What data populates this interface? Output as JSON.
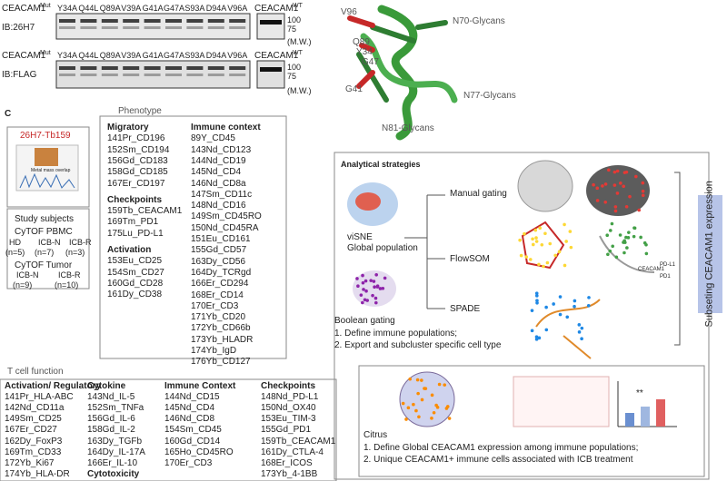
{
  "blots": [
    {
      "construct": "CEACAM1",
      "construct_sup": "Mut",
      "lanes": [
        "Y34A",
        "Q44L",
        "Q89A",
        "V39A",
        "G41A",
        "G47A",
        "S93A",
        "D94A",
        "V96A"
      ],
      "wt": "CEACAM1",
      "wt_sup": "WT",
      "antibody": "IB:26H7",
      "markers": [
        100,
        75
      ],
      "mw": "(M.W.)"
    },
    {
      "construct": "CEACAM1",
      "construct_sup": "Mut",
      "lanes": [
        "Y34A",
        "Q44L",
        "Q89A",
        "V39A",
        "G41A",
        "G47A",
        "S93A",
        "D94A",
        "V96A"
      ],
      "wt": "CEACAM1",
      "wt_sup": "WT",
      "antibody": "IB:FLAG",
      "markers": [
        100,
        75
      ],
      "mw": "(M.W.)"
    }
  ],
  "structure": {
    "residues": [
      "V96",
      "Q89",
      "Y34",
      "G47",
      "G41"
    ],
    "glycans": [
      "N70-Glycans",
      "N77-Glycans",
      "N81-Glycans"
    ]
  },
  "panel_c": {
    "label": "C",
    "probe": "26H7-Tb159",
    "overlap": "Metal mass overlap",
    "subjects": {
      "title": "Study subjects",
      "pbmc": "CyTOF PBMC",
      "pbmc_groups": [
        [
          "HD",
          "(n=5)"
        ],
        [
          "ICB-N",
          "(n=7)"
        ],
        [
          "ICB-R",
          "(n=3)"
        ]
      ],
      "tumor": "CyTOF Tumor",
      "tumor_groups": [
        [
          "ICB-N",
          "(n=9)"
        ],
        [
          "ICB-R",
          "(n=10)"
        ]
      ]
    }
  },
  "phenotype": {
    "title": "Phenotype",
    "groups": [
      {
        "title": "Migratory",
        "items": [
          "141Pr_CD196",
          "152Sm_CD194",
          "156Gd_CD183",
          "158Gd_CD185",
          "167Er_CD197"
        ]
      },
      {
        "title": "Checkpoints",
        "items": [
          "159Tb_CEACAM1",
          "169Tm_PD1",
          "175Lu_PD-L1"
        ]
      },
      {
        "title": "Activation",
        "items": [
          "153Eu_CD25",
          "154Sm_CD27",
          "160Gd_CD28",
          "161Dy_CD38"
        ]
      }
    ],
    "immune_context": {
      "title": "Immune context",
      "items": [
        "89Y_CD45",
        "143Nd_CD123",
        "144Nd_CD19",
        "145Nd_CD4",
        "146Nd_CD8a",
        "147Sm_CD11c",
        "148Nd_CD16",
        "149Sm_CD45RO",
        "150Nd_CD45RA",
        "151Eu_CD161",
        "155Gd_CD57",
        "163Dy_CD56",
        "164Dy_TCRgd",
        "166Er_CD294",
        "168Er_CD14",
        "170Er_CD3",
        "171Yb_CD20",
        "172Yb_CD66b",
        "173Yb_HLADR",
        "174Yb_IgD",
        "176Yb_CD127"
      ]
    }
  },
  "analysis": {
    "title": "Analytical strategies",
    "visne": "viSNE",
    "global": "Global population",
    "methods": [
      "Manual gating",
      "FlowSOM",
      "SPADE"
    ],
    "boolean": {
      "title": "Boolean gating",
      "steps": [
        "1.   Define immune populations;",
        "2.   Export and subcluster specific cell type"
      ]
    },
    "subsetting": "Subseting CEACAM1 expression",
    "flowsom_labels": [
      "CEACAM1",
      "PD-L1",
      "PD1"
    ],
    "citrus": {
      "title": "Citrus",
      "significance": "**",
      "steps": [
        "1.   Define Global CEACAM1 expression among immune populations;",
        "2.   Unique CEACAM1+ immune cells associated with ICB treatment"
      ]
    }
  },
  "t_cell": {
    "title": "T cell function",
    "columns": [
      [
        {
          "title": "Activation/ Regulatory",
          "items": [
            "141Pr_HLA-ABC",
            "142Nd_CD11a",
            "149Sm_CD25",
            "167Er_CD27",
            "162Dy_FoxP3",
            "169Tm_CD33",
            "172Yb_Ki67",
            "174Yb_HLA-DR"
          ]
        }
      ],
      [
        {
          "title": "Cytokine",
          "items": [
            "143Nd_IL-5",
            "152Sm_TNFa",
            "156Gd_IL-6",
            "158Gd_IL-2",
            "163Dy_TGFb",
            "164Dy_IL-17A",
            "166Er_IL-10"
          ]
        },
        {
          "title": "Cytotoxicity",
          "items": []
        }
      ],
      [
        {
          "title": "Immune Context",
          "items": [
            "144Nd_CD15",
            "145Nd_CD4",
            "146Nd_CD8",
            "154Sm_CD45",
            "160Gd_CD14",
            "165Ho_CD45RO",
            "170Er_CD3"
          ]
        }
      ],
      [
        {
          "title": "Checkpoints",
          "items": [
            "148Nd_PD-L1",
            "150Nd_OX40",
            "153Eu_TIM-3",
            "155Gd_PD1",
            "159Tb_CEACAM1",
            "161Dy_CTLA-4",
            "168Er_ICOS",
            "173Yb_4-1BB"
          ]
        }
      ]
    ]
  }
}
